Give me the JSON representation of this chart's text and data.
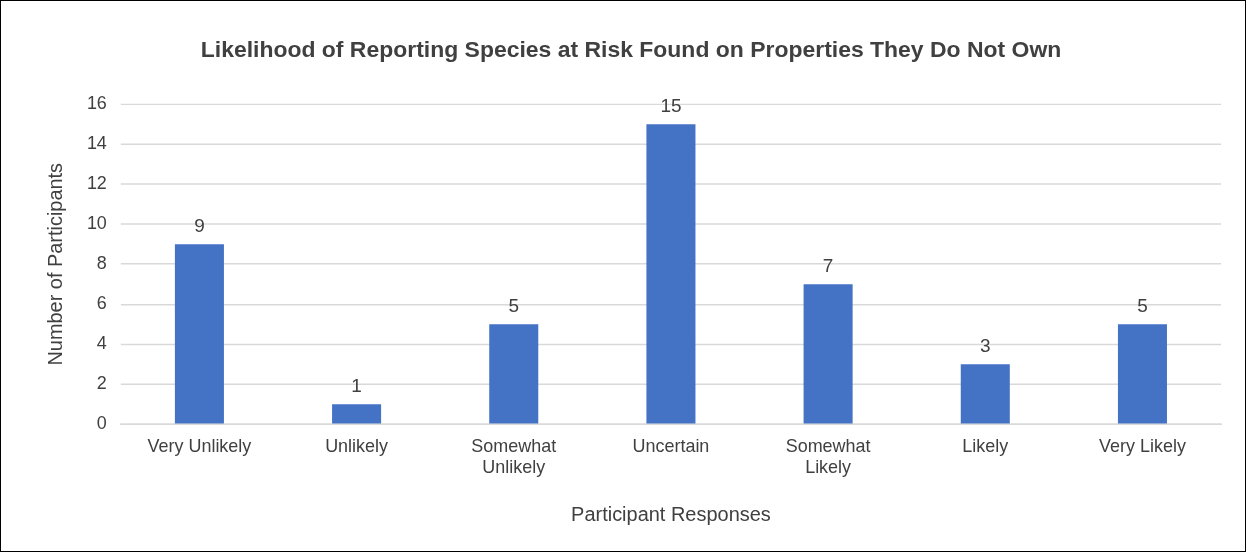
{
  "chart_data": {
    "type": "bar",
    "title": "Likelihood of Reporting Species at Risk Found on Properties They Do Not Own",
    "xlabel": "Participant Responses",
    "ylabel": "Number of Participants",
    "categories": [
      "Very Unlikely",
      "Unlikely",
      "Somewhat\nUnlikely",
      "Uncertain",
      "Somewhat\nLikely",
      "Likely",
      "Very Likely"
    ],
    "values": [
      9,
      1,
      5,
      15,
      7,
      3,
      5
    ],
    "color": "#4472c4",
    "ylim": [
      0,
      16
    ],
    "yticks": [
      0,
      2,
      4,
      6,
      8,
      10,
      12,
      14,
      16
    ],
    "grid": "y",
    "data_labels": true,
    "legend": false
  }
}
